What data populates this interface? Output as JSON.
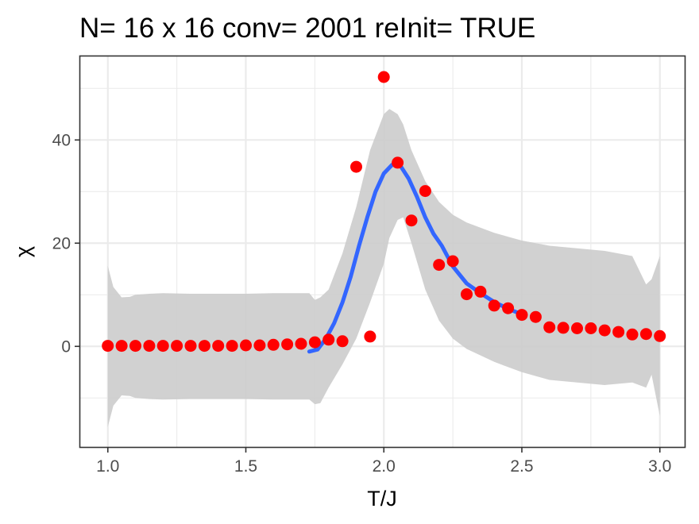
{
  "chart_data": {
    "type": "scatter",
    "title": "N= 16 x 16  conv= 2001  reInit= TRUE",
    "xlabel": "T/J",
    "ylabel": "χ",
    "xlim": [
      0.9,
      3.09
    ],
    "ylim": [
      -19.5,
      56.2
    ],
    "x_ticks": [
      1.0,
      1.5,
      2.0,
      2.5,
      3.0
    ],
    "x_tick_labels": [
      "1.0",
      "1.5",
      "2.0",
      "2.5",
      "3.0"
    ],
    "y_ticks": [
      0,
      20,
      40
    ],
    "y_tick_labels": [
      "0",
      "20",
      "40"
    ],
    "grid": true,
    "points_color": "#ff0000",
    "points": [
      {
        "x": 1.0,
        "y": 0.1
      },
      {
        "x": 1.05,
        "y": 0.1
      },
      {
        "x": 1.1,
        "y": 0.1
      },
      {
        "x": 1.15,
        "y": 0.1
      },
      {
        "x": 1.2,
        "y": 0.1
      },
      {
        "x": 1.25,
        "y": 0.1
      },
      {
        "x": 1.3,
        "y": 0.1
      },
      {
        "x": 1.35,
        "y": 0.1
      },
      {
        "x": 1.4,
        "y": 0.1
      },
      {
        "x": 1.45,
        "y": 0.1
      },
      {
        "x": 1.5,
        "y": 0.2
      },
      {
        "x": 1.55,
        "y": 0.2
      },
      {
        "x": 1.6,
        "y": 0.3
      },
      {
        "x": 1.65,
        "y": 0.4
      },
      {
        "x": 1.7,
        "y": 0.5
      },
      {
        "x": 1.75,
        "y": 0.8
      },
      {
        "x": 1.8,
        "y": 1.3
      },
      {
        "x": 1.85,
        "y": 1.0
      },
      {
        "x": 1.9,
        "y": 34.8
      },
      {
        "x": 1.95,
        "y": 1.9
      },
      {
        "x": 2.0,
        "y": 52.2
      },
      {
        "x": 2.05,
        "y": 35.6
      },
      {
        "x": 2.1,
        "y": 24.4
      },
      {
        "x": 2.15,
        "y": 30.1
      },
      {
        "x": 2.2,
        "y": 15.8
      },
      {
        "x": 2.25,
        "y": 16.5
      },
      {
        "x": 2.3,
        "y": 10.1
      },
      {
        "x": 2.35,
        "y": 10.6
      },
      {
        "x": 2.4,
        "y": 7.9
      },
      {
        "x": 2.45,
        "y": 7.4
      },
      {
        "x": 2.5,
        "y": 6.1
      },
      {
        "x": 2.55,
        "y": 5.7
      },
      {
        "x": 2.6,
        "y": 3.7
      },
      {
        "x": 2.65,
        "y": 3.6
      },
      {
        "x": 2.7,
        "y": 3.5
      },
      {
        "x": 2.75,
        "y": 3.5
      },
      {
        "x": 2.8,
        "y": 3.1
      },
      {
        "x": 2.85,
        "y": 2.8
      },
      {
        "x": 2.9,
        "y": 2.3
      },
      {
        "x": 2.95,
        "y": 2.4
      },
      {
        "x": 3.0,
        "y": 2.0
      }
    ],
    "smooth_color": "#3366ff",
    "smooth_line": [
      {
        "x": 1.73,
        "y": -1.0
      },
      {
        "x": 1.76,
        "y": -0.6
      },
      {
        "x": 1.79,
        "y": 1.5
      },
      {
        "x": 1.82,
        "y": 4.5
      },
      {
        "x": 1.85,
        "y": 8.5
      },
      {
        "x": 1.88,
        "y": 13.5
      },
      {
        "x": 1.91,
        "y": 19.5
      },
      {
        "x": 1.94,
        "y": 25.0
      },
      {
        "x": 1.97,
        "y": 30.0
      },
      {
        "x": 2.0,
        "y": 33.5
      },
      {
        "x": 2.03,
        "y": 35.2
      },
      {
        "x": 2.06,
        "y": 35.0
      },
      {
        "x": 2.09,
        "y": 32.5
      },
      {
        "x": 2.12,
        "y": 29.0
      },
      {
        "x": 2.15,
        "y": 25.0
      },
      {
        "x": 2.18,
        "y": 21.8
      },
      {
        "x": 2.21,
        "y": 19.5
      },
      {
        "x": 2.25,
        "y": 15.5
      },
      {
        "x": 2.3,
        "y": 12.2
      },
      {
        "x": 2.35,
        "y": 10.3
      },
      {
        "x": 2.4,
        "y": 8.6
      },
      {
        "x": 2.45,
        "y": 7.3
      },
      {
        "x": 2.5,
        "y": 6.2
      }
    ],
    "band_color": "#cccccc",
    "band": [
      {
        "x": 1.0,
        "lo": -15.6,
        "hi": 15.6
      },
      {
        "x": 1.02,
        "lo": -11.5,
        "hi": 11.5
      },
      {
        "x": 1.05,
        "lo": -9.5,
        "hi": 9.5
      },
      {
        "x": 1.08,
        "lo": -9.6,
        "hi": 9.6
      },
      {
        "x": 1.1,
        "lo": -10.0,
        "hi": 10.0
      },
      {
        "x": 1.15,
        "lo": -10.2,
        "hi": 10.2
      },
      {
        "x": 1.2,
        "lo": -10.3,
        "hi": 10.3
      },
      {
        "x": 1.3,
        "lo": -10.2,
        "hi": 10.2
      },
      {
        "x": 1.4,
        "lo": -10.2,
        "hi": 10.2
      },
      {
        "x": 1.5,
        "lo": -10.2,
        "hi": 10.2
      },
      {
        "x": 1.6,
        "lo": -10.3,
        "hi": 10.3
      },
      {
        "x": 1.7,
        "lo": -10.3,
        "hi": 10.3
      },
      {
        "x": 1.73,
        "lo": -10.3,
        "hi": 10.3
      },
      {
        "x": 1.75,
        "lo": -11.2,
        "hi": 9.0
      },
      {
        "x": 1.77,
        "lo": -11.0,
        "hi": 9.5
      },
      {
        "x": 1.8,
        "lo": -8.0,
        "hi": 11.0
      },
      {
        "x": 1.85,
        "lo": -3.5,
        "hi": 18.0
      },
      {
        "x": 1.9,
        "lo": 1.5,
        "hi": 27.0
      },
      {
        "x": 1.95,
        "lo": 8.5,
        "hi": 38.0
      },
      {
        "x": 2.0,
        "lo": 16.0,
        "hi": 45.0
      },
      {
        "x": 2.02,
        "lo": 21.0,
        "hi": 46.0
      },
      {
        "x": 2.05,
        "lo": 24.5,
        "hi": 45.0
      },
      {
        "x": 2.07,
        "lo": 25.0,
        "hi": 43.0
      },
      {
        "x": 2.1,
        "lo": 20.0,
        "hi": 38.0
      },
      {
        "x": 2.15,
        "lo": 11.0,
        "hi": 32.0
      },
      {
        "x": 2.2,
        "lo": 5.0,
        "hi": 28.0
      },
      {
        "x": 2.25,
        "lo": 1.5,
        "hi": 25.5
      },
      {
        "x": 2.3,
        "lo": -0.5,
        "hi": 24.0
      },
      {
        "x": 2.4,
        "lo": -3.0,
        "hi": 22.0
      },
      {
        "x": 2.5,
        "lo": -5.0,
        "hi": 20.5
      },
      {
        "x": 2.6,
        "lo": -6.5,
        "hi": 19.5
      },
      {
        "x": 2.7,
        "lo": -7.0,
        "hi": 19.0
      },
      {
        "x": 2.8,
        "lo": -7.5,
        "hi": 18.5
      },
      {
        "x": 2.9,
        "lo": -7.0,
        "hi": 17.5
      },
      {
        "x": 2.95,
        "lo": -8.0,
        "hi": 12.0
      },
      {
        "x": 2.97,
        "lo": -5.5,
        "hi": 13.0
      },
      {
        "x": 3.0,
        "lo": -13.5,
        "hi": 17.5
      }
    ]
  }
}
